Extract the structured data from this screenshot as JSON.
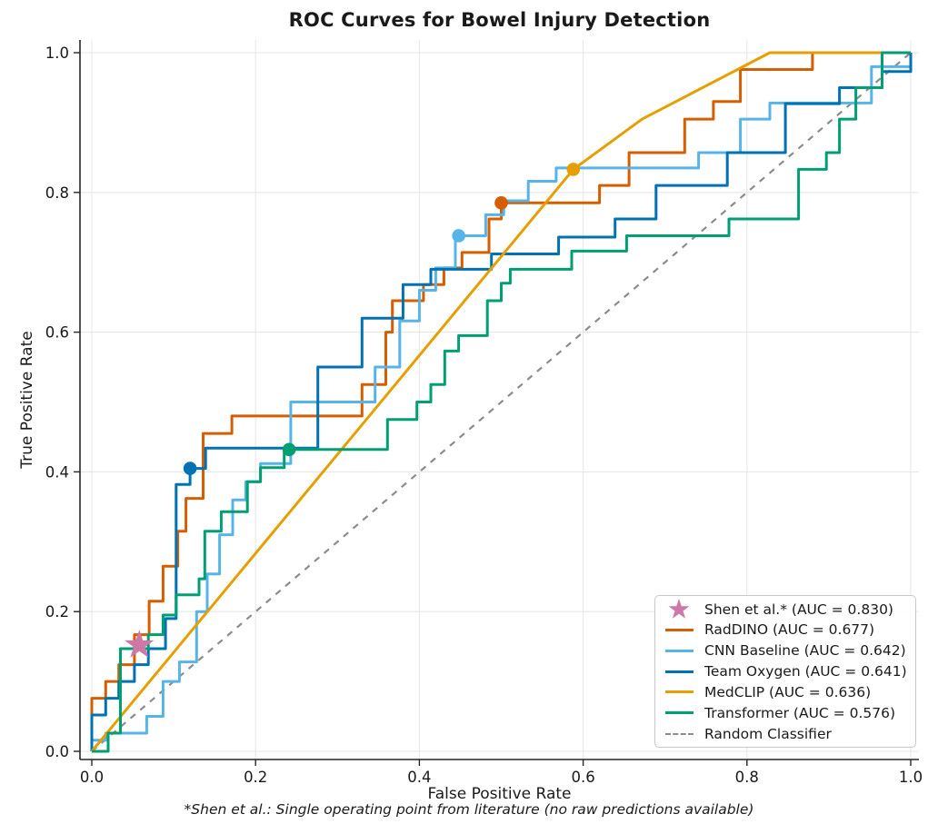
{
  "chart_data": {
    "type": "line",
    "title": "ROC Curves for Bowel Injury Detection",
    "xlabel": "False Positive Rate",
    "ylabel": "True Positive Rate",
    "footnote": "*Shen et al.: Single operating point from literature (no raw predictions available)",
    "xlim": [
      0,
      1
    ],
    "ylim": [
      0,
      1
    ],
    "xticks": [
      0.0,
      0.2,
      0.4,
      0.6,
      0.8,
      1.0
    ],
    "yticks": [
      0.0,
      0.2,
      0.4,
      0.6,
      0.8,
      1.0
    ],
    "grid": true,
    "legend_position": "lower right",
    "colors": {
      "grid": "#e7e7e7",
      "spine": "#262626",
      "random_classifier": "#8c8c8c"
    },
    "series": [
      {
        "name": "Shen et al.* (AUC = 0.830)",
        "auc": 0.83,
        "color": "#CC79A7",
        "marker": "star",
        "operating_point": [
          0.058,
          0.152
        ]
      },
      {
        "name": "RadDINO (AUC = 0.677)",
        "auc": 0.677,
        "color": "#D55E00",
        "marker": "circle",
        "operating_point": [
          0.5,
          0.785
        ],
        "points": [
          [
            0,
            0
          ],
          [
            0,
            0.076
          ],
          [
            0.017,
            0.076
          ],
          [
            0.017,
            0.1
          ],
          [
            0.033,
            0.1
          ],
          [
            0.033,
            0.124
          ],
          [
            0.052,
            0.124
          ],
          [
            0.052,
            0.167
          ],
          [
            0.07,
            0.167
          ],
          [
            0.07,
            0.215
          ],
          [
            0.087,
            0.215
          ],
          [
            0.087,
            0.265
          ],
          [
            0.105,
            0.265
          ],
          [
            0.105,
            0.315
          ],
          [
            0.115,
            0.315
          ],
          [
            0.115,
            0.362
          ],
          [
            0.136,
            0.362
          ],
          [
            0.136,
            0.455
          ],
          [
            0.171,
            0.455
          ],
          [
            0.171,
            0.48
          ],
          [
            0.33,
            0.48
          ],
          [
            0.33,
            0.525
          ],
          [
            0.359,
            0.525
          ],
          [
            0.359,
            0.6
          ],
          [
            0.367,
            0.6
          ],
          [
            0.367,
            0.645
          ],
          [
            0.405,
            0.645
          ],
          [
            0.405,
            0.668
          ],
          [
            0.43,
            0.668
          ],
          [
            0.43,
            0.692
          ],
          [
            0.452,
            0.692
          ],
          [
            0.452,
            0.714
          ],
          [
            0.485,
            0.714
          ],
          [
            0.485,
            0.762
          ],
          [
            0.5,
            0.762
          ],
          [
            0.5,
            0.785
          ],
          [
            0.62,
            0.785
          ],
          [
            0.62,
            0.81
          ],
          [
            0.656,
            0.81
          ],
          [
            0.656,
            0.857
          ],
          [
            0.724,
            0.857
          ],
          [
            0.724,
            0.905
          ],
          [
            0.759,
            0.905
          ],
          [
            0.759,
            0.93
          ],
          [
            0.792,
            0.93
          ],
          [
            0.792,
            0.976
          ],
          [
            0.88,
            0.976
          ],
          [
            0.88,
            1.0
          ],
          [
            1,
            1
          ]
        ]
      },
      {
        "name": "CNN Baseline (AUC = 0.642)",
        "auc": 0.642,
        "color": "#56B4E9",
        "marker": "circle",
        "operating_point": [
          0.448,
          0.738
        ],
        "points": [
          [
            0,
            0
          ],
          [
            0,
            0.016
          ],
          [
            0.017,
            0.016
          ],
          [
            0.017,
            0.026
          ],
          [
            0.067,
            0.026
          ],
          [
            0.067,
            0.05
          ],
          [
            0.087,
            0.05
          ],
          [
            0.087,
            0.1
          ],
          [
            0.107,
            0.1
          ],
          [
            0.107,
            0.128
          ],
          [
            0.128,
            0.128
          ],
          [
            0.128,
            0.2
          ],
          [
            0.141,
            0.2
          ],
          [
            0.141,
            0.254
          ],
          [
            0.156,
            0.254
          ],
          [
            0.156,
            0.31
          ],
          [
            0.172,
            0.31
          ],
          [
            0.172,
            0.36
          ],
          [
            0.188,
            0.36
          ],
          [
            0.188,
            0.386
          ],
          [
            0.206,
            0.386
          ],
          [
            0.206,
            0.412
          ],
          [
            0.243,
            0.412
          ],
          [
            0.243,
            0.5
          ],
          [
            0.346,
            0.5
          ],
          [
            0.346,
            0.55
          ],
          [
            0.376,
            0.55
          ],
          [
            0.376,
            0.616
          ],
          [
            0.4,
            0.616
          ],
          [
            0.4,
            0.66
          ],
          [
            0.42,
            0.66
          ],
          [
            0.42,
            0.692
          ],
          [
            0.444,
            0.692
          ],
          [
            0.444,
            0.738
          ],
          [
            0.481,
            0.738
          ],
          [
            0.481,
            0.768
          ],
          [
            0.503,
            0.768
          ],
          [
            0.503,
            0.788
          ],
          [
            0.533,
            0.788
          ],
          [
            0.533,
            0.816
          ],
          [
            0.567,
            0.816
          ],
          [
            0.567,
            0.835
          ],
          [
            0.741,
            0.835
          ],
          [
            0.741,
            0.857
          ],
          [
            0.792,
            0.857
          ],
          [
            0.792,
            0.905
          ],
          [
            0.828,
            0.905
          ],
          [
            0.828,
            0.928
          ],
          [
            0.952,
            0.928
          ],
          [
            0.952,
            0.98
          ],
          [
            1,
            0.98
          ],
          [
            1,
            1
          ]
        ]
      },
      {
        "name": "Team Oxygen (AUC = 0.641)",
        "auc": 0.641,
        "color": "#0072B2",
        "marker": "circle",
        "operating_point": [
          0.12,
          0.405
        ],
        "points": [
          [
            0,
            0
          ],
          [
            0,
            0.052
          ],
          [
            0.017,
            0.052
          ],
          [
            0.017,
            0.076
          ],
          [
            0.033,
            0.076
          ],
          [
            0.033,
            0.1
          ],
          [
            0.052,
            0.1
          ],
          [
            0.052,
            0.124
          ],
          [
            0.069,
            0.124
          ],
          [
            0.069,
            0.147
          ],
          [
            0.09,
            0.147
          ],
          [
            0.09,
            0.19
          ],
          [
            0.103,
            0.19
          ],
          [
            0.103,
            0.382
          ],
          [
            0.12,
            0.382
          ],
          [
            0.12,
            0.405
          ],
          [
            0.139,
            0.405
          ],
          [
            0.139,
            0.434
          ],
          [
            0.276,
            0.434
          ],
          [
            0.276,
            0.55
          ],
          [
            0.33,
            0.55
          ],
          [
            0.33,
            0.62
          ],
          [
            0.38,
            0.62
          ],
          [
            0.38,
            0.668
          ],
          [
            0.414,
            0.668
          ],
          [
            0.414,
            0.69
          ],
          [
            0.488,
            0.69
          ],
          [
            0.488,
            0.712
          ],
          [
            0.57,
            0.712
          ],
          [
            0.57,
            0.736
          ],
          [
            0.639,
            0.736
          ],
          [
            0.639,
            0.762
          ],
          [
            0.689,
            0.762
          ],
          [
            0.689,
            0.81
          ],
          [
            0.776,
            0.81
          ],
          [
            0.776,
            0.857
          ],
          [
            0.847,
            0.857
          ],
          [
            0.847,
            0.927
          ],
          [
            0.913,
            0.927
          ],
          [
            0.913,
            0.95
          ],
          [
            0.965,
            0.95
          ],
          [
            0.965,
            0.973
          ],
          [
            1,
            0.973
          ],
          [
            1,
            1
          ]
        ]
      },
      {
        "name": "MedCLIP (AUC = 0.636)",
        "auc": 0.636,
        "color": "#E69F00",
        "marker": "circle",
        "operating_point": [
          0.588,
          0.833
        ],
        "points": [
          [
            0,
            0
          ],
          [
            0.588,
            0.833
          ],
          [
            0.672,
            0.905
          ],
          [
            0.828,
            1.0
          ],
          [
            1,
            1
          ]
        ]
      },
      {
        "name": "Transformer (AUC = 0.576)",
        "auc": 0.576,
        "color": "#009E73",
        "marker": "circle",
        "operating_point": [
          0.241,
          0.432
        ],
        "points": [
          [
            0,
            0
          ],
          [
            0.02,
            0
          ],
          [
            0.02,
            0.026
          ],
          [
            0.035,
            0.026
          ],
          [
            0.035,
            0.147
          ],
          [
            0.069,
            0.147
          ],
          [
            0.069,
            0.167
          ],
          [
            0.087,
            0.167
          ],
          [
            0.087,
            0.195
          ],
          [
            0.103,
            0.195
          ],
          [
            0.103,
            0.224
          ],
          [
            0.131,
            0.224
          ],
          [
            0.131,
            0.247
          ],
          [
            0.138,
            0.247
          ],
          [
            0.138,
            0.315
          ],
          [
            0.158,
            0.315
          ],
          [
            0.158,
            0.343
          ],
          [
            0.19,
            0.343
          ],
          [
            0.19,
            0.386
          ],
          [
            0.206,
            0.386
          ],
          [
            0.206,
            0.406
          ],
          [
            0.235,
            0.406
          ],
          [
            0.235,
            0.432
          ],
          [
            0.361,
            0.432
          ],
          [
            0.361,
            0.475
          ],
          [
            0.397,
            0.475
          ],
          [
            0.397,
            0.5
          ],
          [
            0.414,
            0.5
          ],
          [
            0.414,
            0.525
          ],
          [
            0.431,
            0.525
          ],
          [
            0.431,
            0.573
          ],
          [
            0.448,
            0.573
          ],
          [
            0.448,
            0.595
          ],
          [
            0.483,
            0.595
          ],
          [
            0.483,
            0.645
          ],
          [
            0.5,
            0.645
          ],
          [
            0.5,
            0.67
          ],
          [
            0.511,
            0.67
          ],
          [
            0.511,
            0.69
          ],
          [
            0.586,
            0.69
          ],
          [
            0.586,
            0.716
          ],
          [
            0.653,
            0.716
          ],
          [
            0.653,
            0.738
          ],
          [
            0.778,
            0.738
          ],
          [
            0.778,
            0.762
          ],
          [
            0.863,
            0.762
          ],
          [
            0.863,
            0.833
          ],
          [
            0.897,
            0.833
          ],
          [
            0.897,
            0.857
          ],
          [
            0.913,
            0.857
          ],
          [
            0.913,
            0.905
          ],
          [
            0.933,
            0.905
          ],
          [
            0.933,
            0.95
          ],
          [
            0.965,
            0.95
          ],
          [
            0.965,
            1.0
          ],
          [
            1,
            1
          ]
        ]
      },
      {
        "name": "Random Classifier",
        "color": "#8c8c8c",
        "dashed": true,
        "points": [
          [
            0,
            0
          ],
          [
            1,
            1
          ]
        ]
      }
    ]
  }
}
